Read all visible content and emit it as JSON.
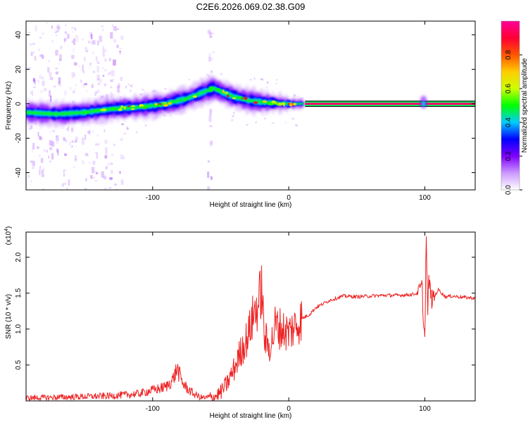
{
  "title": "C2E6.2026.069.02.38.G09",
  "chart_data": [
    {
      "type": "heatmap",
      "xlabel": "Height of straight line (km)",
      "ylabel": "Frequency (Hz)",
      "xlim": [
        -193,
        137
      ],
      "ylim": [
        -50,
        48
      ],
      "xticks": [
        -100,
        0,
        100
      ],
      "yticks": [
        -40,
        -20,
        0,
        20,
        40
      ],
      "ridge": {
        "x": [
          -193,
          -170,
          -150,
          -130,
          -110,
          -90,
          -75,
          -62,
          -55,
          -50,
          -40,
          -30,
          -20,
          -10,
          0,
          10
        ],
        "freq_hz": [
          -5,
          -6,
          -5,
          -3,
          -2,
          0,
          3,
          7,
          9,
          7,
          4,
          2,
          1,
          0.5,
          0,
          0
        ]
      },
      "flat_band": {
        "x_start": 12,
        "x_end": 137,
        "freq_hz": 0
      },
      "colorbar": {
        "label": "Normalized spectral amplitude",
        "range": [
          0.0,
          1.0
        ],
        "ticks": [
          0.0,
          0.2,
          0.4,
          0.6,
          0.8
        ],
        "tick_labels": [
          "0.0",
          "0.2",
          "0.4",
          "0.6",
          "0.8"
        ],
        "colors": [
          "#ffffff",
          "#cc99ff",
          "#7f00ff",
          "#0000ff",
          "#00ccff",
          "#00ff00",
          "#ccff00",
          "#ffcc00",
          "#ff5500",
          "#ff0033",
          "#ff0099"
        ]
      }
    },
    {
      "type": "line",
      "xlabel": "Height of straight line (km)",
      "ylabel": "SNR (10 * v/v)",
      "scale_label": "(x10",
      "scale_exp": "4",
      "scale_close": ")",
      "xlim": [
        -193,
        137
      ],
      "ylim": [
        0,
        2.35
      ],
      "xticks": [
        -100,
        0,
        100
      ],
      "yticks": [
        0.5,
        1.0,
        1.5,
        2.0
      ],
      "ytick_labels": [
        "0.5",
        "1.0",
        "1.5",
        "2.0"
      ],
      "series": [
        {
          "name": "SNR",
          "color": "#ee2222",
          "x": [
            -193,
            -170,
            -150,
            -130,
            -110,
            -100,
            -95,
            -90,
            -85,
            -82,
            -80,
            -78,
            -75,
            -70,
            -65,
            -60,
            -55,
            -50,
            -45,
            -40,
            -35,
            -30,
            -28,
            -25,
            -22,
            -20,
            -18,
            -15,
            -12,
            -10,
            -5,
            0,
            5,
            10,
            15,
            20,
            25,
            30,
            35,
            40,
            50,
            60,
            70,
            80,
            90,
            95,
            98,
            99,
            100,
            101,
            102,
            103,
            105,
            110,
            115,
            120,
            130,
            137
          ],
          "values": [
            0.04,
            0.05,
            0.06,
            0.07,
            0.1,
            0.15,
            0.17,
            0.2,
            0.3,
            0.45,
            0.35,
            0.25,
            0.18,
            0.1,
            0.05,
            0.04,
            0.05,
            0.12,
            0.25,
            0.45,
            0.7,
            0.9,
            1.05,
            1.25,
            1.35,
            1.6,
            0.9,
            0.75,
            0.85,
            1.05,
            1.0,
            0.95,
            1.05,
            1.15,
            1.2,
            1.3,
            1.35,
            1.4,
            1.43,
            1.46,
            1.45,
            1.46,
            1.47,
            1.47,
            1.48,
            1.5,
            1.6,
            1.1,
            0.85,
            2.35,
            1.2,
            1.7,
            1.4,
            1.55,
            1.45,
            1.46,
            1.44,
            1.43
          ]
        }
      ]
    }
  ]
}
